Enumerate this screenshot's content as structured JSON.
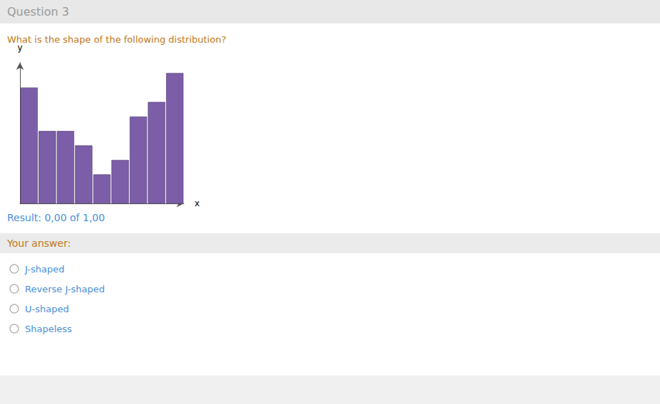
{
  "chart_data": {
    "type": "bar",
    "title": "What is the shape of the following distribution?",
    "annotations": [
      "Question 3",
      "Result: 0,00 of 1,00",
      "Your answer:",
      "J-shaped",
      "Reverse J-shaped",
      "U-shaped",
      "Shapeless"
    ],
    "xlabel": "x",
    "ylabel": "y",
    "categories": [
      null,
      null,
      null,
      null,
      null,
      null,
      null,
      null,
      null
    ],
    "values": [
      8,
      5,
      5,
      4,
      2,
      3,
      6,
      7,
      9
    ],
    "color": "#7B5EA7",
    "ylim": [
      0,
      9.72
    ],
    "grid": false,
    "tick_labels": false
  }
}
